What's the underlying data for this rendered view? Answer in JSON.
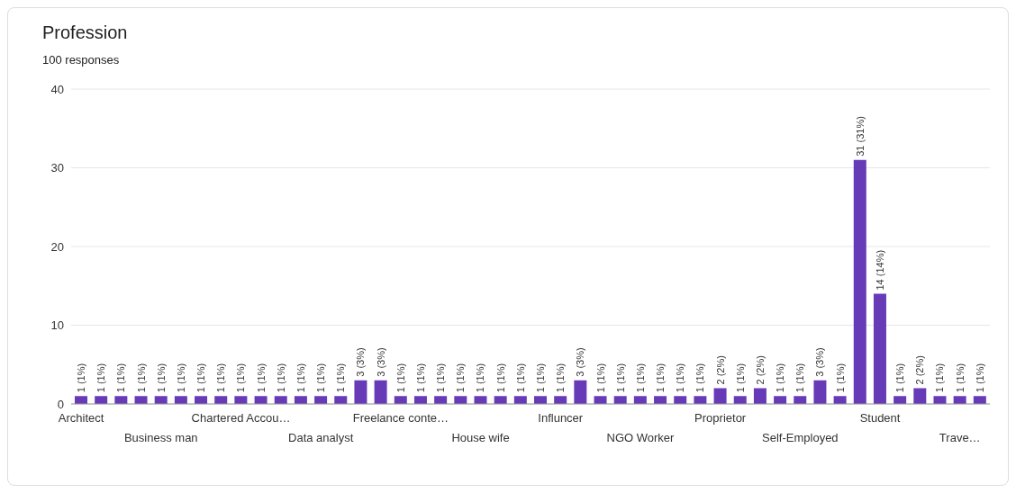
{
  "chart_data": {
    "type": "bar",
    "title": "Profession",
    "subtitle": "100 responses",
    "categories": [
      "Architect",
      null,
      null,
      null,
      "Business man",
      null,
      null,
      null,
      "Chartered Accou…",
      null,
      null,
      null,
      "Data analyst",
      null,
      null,
      null,
      "Freelance conte…",
      null,
      null,
      null,
      "House wife",
      null,
      null,
      null,
      "Influncer",
      null,
      null,
      null,
      "NGO Worker",
      null,
      null,
      null,
      "Proprietor",
      null,
      null,
      null,
      "Self-Employed",
      null,
      null,
      null,
      "Student",
      null,
      null,
      null,
      "Trave…",
      null
    ],
    "values": [
      1,
      1,
      1,
      1,
      1,
      1,
      1,
      1,
      1,
      1,
      1,
      1,
      1,
      1,
      3,
      3,
      1,
      1,
      1,
      1,
      1,
      1,
      1,
      1,
      1,
      3,
      1,
      1,
      1,
      1,
      1,
      1,
      2,
      1,
      2,
      1,
      1,
      3,
      1,
      31,
      14,
      1,
      2,
      1,
      1,
      1
    ],
    "value_labels": [
      "1 (1%)",
      "1 (1%)",
      "1 (1%)",
      "1 (1%)",
      "1 (1%)",
      "1 (1%)",
      "1 (1%)",
      "1 (1%)",
      "1 (1%)",
      "1 (1%)",
      "1 (1%)",
      "1 (1%)",
      "1 (1%)",
      "1 (1%)",
      "3 (3%)",
      "3 (3%)",
      "1 (1%)",
      "1 (1%)",
      "1 (1%)",
      "1 (1%)",
      "1 (1%)",
      "1 (1%)",
      "1 (1%)",
      "1 (1%)",
      "1 (1%)",
      "3 (3%)",
      "1 (1%)",
      "1 (1%)",
      "1 (1%)",
      "1 (1%)",
      "1 (1%)",
      "1 (1%)",
      "2 (2%)",
      "1 (1%)",
      "2 (2%)",
      "1 (1%)",
      "1 (1%)",
      "3 (3%)",
      "1 (1%)",
      "31 (31%)",
      "14 (14%)",
      "1 (1%)",
      "2 (2%)",
      "1 (1%)",
      "1 (1%)",
      "1 (1%)"
    ],
    "color": "#673ab7",
    "ylim": [
      0,
      40
    ],
    "yticks": [
      0,
      10,
      20,
      30,
      40
    ],
    "grid": "y"
  }
}
